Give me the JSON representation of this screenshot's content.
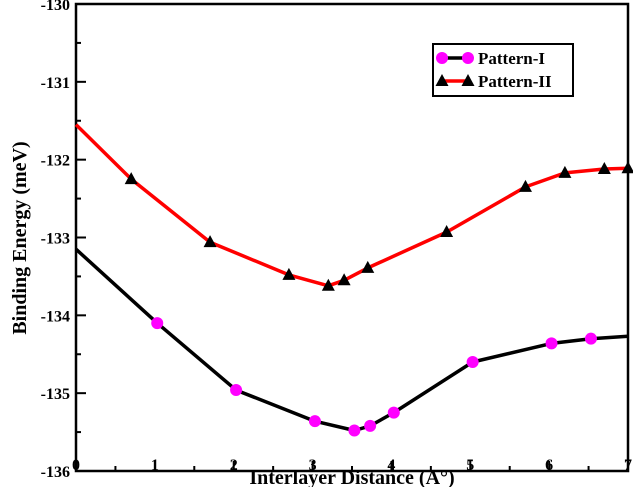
{
  "chart_data": {
    "type": "line",
    "xlabel": "Interlayer Distance (A°)",
    "ylabel": "Binding Energy (meV)",
    "xlim": [
      0,
      7
    ],
    "ylim": [
      -136,
      -130
    ],
    "x_ticks": [
      "0",
      "1",
      "2",
      "3",
      "4",
      "5",
      "6",
      "7"
    ],
    "y_ticks": [
      "-136",
      "-135",
      "-134",
      "-133",
      "-132",
      "-131",
      "-130"
    ],
    "grid": false,
    "legend_position": "top-right",
    "series": [
      {
        "name": "Pattern-I",
        "line_color": "#000000",
        "marker": "circle",
        "marker_color": "#ff00ff",
        "line_points": [
          {
            "x": 0.0,
            "y": -133.15
          },
          {
            "x": 1.03,
            "y": -134.1
          },
          {
            "x": 2.03,
            "y": -134.96
          },
          {
            "x": 3.03,
            "y": -135.36
          },
          {
            "x": 3.53,
            "y": -135.48
          },
          {
            "x": 3.73,
            "y": -135.42
          },
          {
            "x": 4.03,
            "y": -135.25
          },
          {
            "x": 5.03,
            "y": -134.6
          },
          {
            "x": 6.03,
            "y": -134.36
          },
          {
            "x": 6.53,
            "y": -134.3
          },
          {
            "x": 7.0,
            "y": -134.27
          }
        ],
        "markers": [
          {
            "x": 1.03,
            "y": -134.1
          },
          {
            "x": 2.03,
            "y": -134.96
          },
          {
            "x": 3.03,
            "y": -135.36
          },
          {
            "x": 3.53,
            "y": -135.48
          },
          {
            "x": 3.73,
            "y": -135.42
          },
          {
            "x": 4.03,
            "y": -135.25
          },
          {
            "x": 5.03,
            "y": -134.6
          },
          {
            "x": 6.03,
            "y": -134.36
          },
          {
            "x": 6.53,
            "y": -134.3
          }
        ]
      },
      {
        "name": "Pattern-II",
        "line_color": "#ff0000",
        "marker": "triangle",
        "marker_color": "#000000",
        "line_points": [
          {
            "x": 0.0,
            "y": -131.55
          },
          {
            "x": 0.7,
            "y": -132.25
          },
          {
            "x": 1.7,
            "y": -133.06
          },
          {
            "x": 2.7,
            "y": -133.48
          },
          {
            "x": 3.2,
            "y": -133.62
          },
          {
            "x": 3.4,
            "y": -133.55
          },
          {
            "x": 3.7,
            "y": -133.39
          },
          {
            "x": 4.7,
            "y": -132.93
          },
          {
            "x": 5.7,
            "y": -132.35
          },
          {
            "x": 6.2,
            "y": -132.17
          },
          {
            "x": 6.7,
            "y": -132.12
          },
          {
            "x": 7.0,
            "y": -132.11
          }
        ],
        "markers": [
          {
            "x": 0.7,
            "y": -132.25
          },
          {
            "x": 1.7,
            "y": -133.06
          },
          {
            "x": 2.7,
            "y": -133.48
          },
          {
            "x": 3.2,
            "y": -133.62
          },
          {
            "x": 3.4,
            "y": -133.55
          },
          {
            "x": 3.7,
            "y": -133.39
          },
          {
            "x": 4.7,
            "y": -132.93
          },
          {
            "x": 5.7,
            "y": -132.35
          },
          {
            "x": 6.2,
            "y": -132.17
          },
          {
            "x": 6.7,
            "y": -132.12
          },
          {
            "x": 7.0,
            "y": -132.11
          }
        ]
      }
    ]
  }
}
